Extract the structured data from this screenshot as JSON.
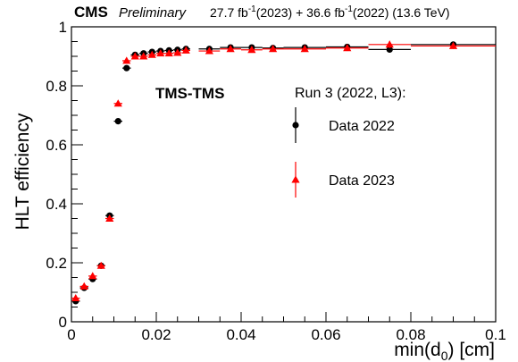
{
  "header": {
    "experiment": "CMS",
    "status": "Preliminary",
    "lumi_2023": "27.7",
    "lumi_2022": "36.6",
    "unit": "fb",
    "exponent": "-1",
    "lumi_2023_suffix": "(2023) +",
    "lumi_2022_suffix": "(2022) (13.6 TeV)"
  },
  "annotation": "TMS-TMS",
  "legend_header": "Run 3 (2022, L3):",
  "chart_data": {
    "type": "scatter",
    "xlabel_prefix": "min(d",
    "xlabel_sub": "0",
    "xlabel_suffix": ") [cm]",
    "ylabel": "HLT efficiency",
    "xlim": [
      0,
      0.1
    ],
    "ylim": [
      0,
      1.0
    ],
    "x_ticks": [
      0,
      0.02,
      0.04,
      0.06,
      0.08,
      0.1
    ],
    "x_tick_labels": [
      "0",
      "0.02",
      "0.04",
      "0.06",
      "0.08",
      "0.1"
    ],
    "y_ticks": [
      0,
      0.2,
      0.4,
      0.6,
      0.8,
      1.0
    ],
    "y_tick_labels": [
      "0",
      "0.2",
      "0.4",
      "0.6",
      "0.8",
      "1"
    ],
    "grid": false,
    "legend_position": "right",
    "series": [
      {
        "name": "Data 2022",
        "color": "#000000",
        "marker": "circle",
        "points": [
          {
            "x": 0.001,
            "y": 0.07,
            "xerr": 0.001,
            "yerr": 0.006
          },
          {
            "x": 0.003,
            "y": 0.115,
            "xerr": 0.001,
            "yerr": 0.006
          },
          {
            "x": 0.005,
            "y": 0.145,
            "xerr": 0.001,
            "yerr": 0.006
          },
          {
            "x": 0.007,
            "y": 0.19,
            "xerr": 0.001,
            "yerr": 0.006
          },
          {
            "x": 0.009,
            "y": 0.36,
            "xerr": 0.001,
            "yerr": 0.008
          },
          {
            "x": 0.011,
            "y": 0.68,
            "xerr": 0.001,
            "yerr": 0.008
          },
          {
            "x": 0.013,
            "y": 0.86,
            "xerr": 0.001,
            "yerr": 0.008
          },
          {
            "x": 0.015,
            "y": 0.905,
            "xerr": 0.001,
            "yerr": 0.005
          },
          {
            "x": 0.017,
            "y": 0.91,
            "xerr": 0.001,
            "yerr": 0.005
          },
          {
            "x": 0.019,
            "y": 0.915,
            "xerr": 0.001,
            "yerr": 0.005
          },
          {
            "x": 0.021,
            "y": 0.918,
            "xerr": 0.001,
            "yerr": 0.005
          },
          {
            "x": 0.023,
            "y": 0.92,
            "xerr": 0.001,
            "yerr": 0.005
          },
          {
            "x": 0.025,
            "y": 0.922,
            "xerr": 0.001,
            "yerr": 0.005
          },
          {
            "x": 0.027,
            "y": 0.925,
            "xerr": 0.001,
            "yerr": 0.005
          },
          {
            "x": 0.0325,
            "y": 0.925,
            "xerr": 0.0025,
            "yerr": 0.005
          },
          {
            "x": 0.0375,
            "y": 0.93,
            "xerr": 0.0025,
            "yerr": 0.005
          },
          {
            "x": 0.0425,
            "y": 0.93,
            "xerr": 0.0025,
            "yerr": 0.006
          },
          {
            "x": 0.0475,
            "y": 0.928,
            "xerr": 0.0025,
            "yerr": 0.006
          },
          {
            "x": 0.055,
            "y": 0.93,
            "xerr": 0.005,
            "yerr": 0.006
          },
          {
            "x": 0.065,
            "y": 0.932,
            "xerr": 0.005,
            "yerr": 0.008
          },
          {
            "x": 0.075,
            "y": 0.923,
            "xerr": 0.005,
            "yerr": 0.01
          },
          {
            "x": 0.09,
            "y": 0.94,
            "xerr": 0.01,
            "yerr": 0.008
          }
        ]
      },
      {
        "name": "Data 2023",
        "color": "#ff0000",
        "marker": "triangle",
        "points": [
          {
            "x": 0.001,
            "y": 0.08,
            "xerr": 0.001,
            "yerr": 0.008
          },
          {
            "x": 0.003,
            "y": 0.12,
            "xerr": 0.001,
            "yerr": 0.008
          },
          {
            "x": 0.005,
            "y": 0.155,
            "xerr": 0.001,
            "yerr": 0.008
          },
          {
            "x": 0.007,
            "y": 0.19,
            "xerr": 0.001,
            "yerr": 0.008
          },
          {
            "x": 0.009,
            "y": 0.35,
            "xerr": 0.001,
            "yerr": 0.01
          },
          {
            "x": 0.011,
            "y": 0.74,
            "xerr": 0.001,
            "yerr": 0.01
          },
          {
            "x": 0.013,
            "y": 0.885,
            "xerr": 0.001,
            "yerr": 0.008
          },
          {
            "x": 0.015,
            "y": 0.9,
            "xerr": 0.001,
            "yerr": 0.006
          },
          {
            "x": 0.017,
            "y": 0.9,
            "xerr": 0.001,
            "yerr": 0.006
          },
          {
            "x": 0.019,
            "y": 0.905,
            "xerr": 0.001,
            "yerr": 0.006
          },
          {
            "x": 0.021,
            "y": 0.91,
            "xerr": 0.001,
            "yerr": 0.006
          },
          {
            "x": 0.023,
            "y": 0.91,
            "xerr": 0.001,
            "yerr": 0.006
          },
          {
            "x": 0.025,
            "y": 0.912,
            "xerr": 0.001,
            "yerr": 0.006
          },
          {
            "x": 0.027,
            "y": 0.92,
            "xerr": 0.001,
            "yerr": 0.006
          },
          {
            "x": 0.0325,
            "y": 0.918,
            "xerr": 0.0025,
            "yerr": 0.006
          },
          {
            "x": 0.0375,
            "y": 0.925,
            "xerr": 0.0025,
            "yerr": 0.006
          },
          {
            "x": 0.0425,
            "y": 0.922,
            "xerr": 0.0025,
            "yerr": 0.007
          },
          {
            "x": 0.0475,
            "y": 0.925,
            "xerr": 0.0025,
            "yerr": 0.007
          },
          {
            "x": 0.055,
            "y": 0.925,
            "xerr": 0.005,
            "yerr": 0.008
          },
          {
            "x": 0.065,
            "y": 0.928,
            "xerr": 0.005,
            "yerr": 0.01
          },
          {
            "x": 0.075,
            "y": 0.94,
            "xerr": 0.005,
            "yerr": 0.012
          },
          {
            "x": 0.09,
            "y": 0.935,
            "xerr": 0.01,
            "yerr": 0.01
          }
        ]
      }
    ]
  }
}
